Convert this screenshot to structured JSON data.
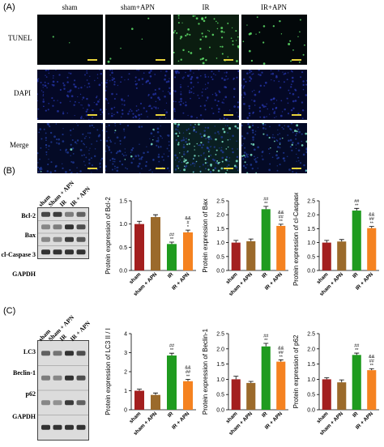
{
  "panels": {
    "a": "(A)",
    "b": "(B)",
    "c": "(C)"
  },
  "microscopy": {
    "columns": [
      "sham",
      "sham+APN",
      "IR",
      "IR+APN"
    ],
    "rows": [
      "TUNEL",
      "DAPI",
      "Merge"
    ]
  },
  "blot_b": {
    "lanes": [
      "sham",
      "Sham + APN",
      "IR",
      "IR + APN"
    ],
    "proteins": [
      "Bcl-2",
      "Bax",
      "cl-Caspase 3",
      "GAPDH"
    ]
  },
  "blot_c": {
    "lanes": [
      "sham",
      "Sham + APN",
      "IR",
      "IR + APN"
    ],
    "proteins": [
      "LC3",
      "Beclin-1",
      "p62",
      "GAPDH"
    ]
  },
  "colors": {
    "sham": "#a31f1f",
    "sham_apn": "#9b6a2b",
    "ir": "#1f9b1f",
    "ir_apn": "#f58220"
  },
  "chart_data": [
    {
      "type": "bar",
      "categories": [
        "sham",
        "sham + APN",
        "IR",
        "IR + APN"
      ],
      "values": [
        1.0,
        1.15,
        0.57,
        0.82
      ],
      "errors": [
        0.06,
        0.05,
        0.04,
        0.05
      ],
      "annotations": [
        "",
        "",
        "##\n**",
        "&&\n#\n*"
      ],
      "ylabel": "Protein expression of  Bcl-2",
      "ylim": [
        0,
        1.5
      ],
      "ticks": [
        "0.0",
        "0.5",
        "1.0",
        "1.5"
      ],
      "tick_values": [
        0,
        0.5,
        1.0,
        1.5
      ]
    },
    {
      "type": "bar",
      "categories": [
        "sham",
        "sham + APN",
        "IR",
        "IR + APN"
      ],
      "values": [
        1.0,
        1.05,
        2.2,
        1.6
      ],
      "errors": [
        0.08,
        0.08,
        0.1,
        0.06
      ],
      "annotations": [
        "",
        "",
        "##\n**",
        "&&\n##\n**"
      ],
      "ylabel": "Protein expression of  Bax",
      "ylim": [
        0,
        2.5
      ],
      "ticks": [
        "0.0",
        "0.5",
        "1.0",
        "1.5",
        "2.0",
        "2.5"
      ],
      "tick_values": [
        0,
        0.5,
        1.0,
        1.5,
        2.0,
        2.5
      ]
    },
    {
      "type": "bar",
      "categories": [
        "sham",
        "sham + APN",
        "IR",
        "IR + APN"
      ],
      "values": [
        1.0,
        1.04,
        2.15,
        1.52
      ],
      "errors": [
        0.08,
        0.07,
        0.08,
        0.06
      ],
      "annotations": [
        "",
        "",
        "##\n**",
        "&&\n##\n**"
      ],
      "ylabel": "Protein expression of  cl-Caspase 3",
      "ylim": [
        0,
        2.5
      ],
      "ticks": [
        "0.0",
        "0.5",
        "1.0",
        "1.5",
        "2.0",
        "2.5"
      ],
      "tick_values": [
        0,
        0.5,
        1.0,
        1.5,
        2.0,
        2.5
      ]
    },
    {
      "type": "bar",
      "categories": [
        "sham",
        "sham + APN",
        "IR",
        "IR + APN"
      ],
      "values": [
        1.0,
        0.78,
        2.85,
        1.5
      ],
      "errors": [
        0.08,
        0.1,
        0.12,
        0.1
      ],
      "annotations": [
        "",
        "",
        "##\n**",
        "&&\n##\n**"
      ],
      "ylabel": "Protein expression of  LC3 II / I",
      "ylim": [
        0,
        4
      ],
      "ticks": [
        "0",
        "1",
        "2",
        "3",
        "4"
      ],
      "tick_values": [
        0,
        1,
        2,
        3,
        4
      ]
    },
    {
      "type": "bar",
      "categories": [
        "sham",
        "sham + APN",
        "IR",
        "IR + APN"
      ],
      "values": [
        1.0,
        0.88,
        2.08,
        1.58
      ],
      "errors": [
        0.1,
        0.05,
        0.1,
        0.06
      ],
      "annotations": [
        "",
        "",
        "##\n**",
        "&&\n##\n**"
      ],
      "ylabel": "Protein expression of  Beclin-1",
      "ylim": [
        0,
        2.5
      ],
      "ticks": [
        "0.0",
        "0.5",
        "1.0",
        "1.5",
        "2.0",
        "2.5"
      ],
      "tick_values": [
        0,
        0.5,
        1.0,
        1.5,
        2.0,
        2.5
      ]
    },
    {
      "type": "bar",
      "categories": [
        "sham",
        "sham + APN",
        "IR",
        "IR + APN"
      ],
      "values": [
        1.0,
        0.9,
        1.8,
        1.3
      ],
      "errors": [
        0.05,
        0.08,
        0.06,
        0.05
      ],
      "annotations": [
        "",
        "",
        "##\n**",
        "&&\n##\n**"
      ],
      "ylabel": "Protein expression of  p62",
      "ylim": [
        0,
        2.5
      ],
      "ticks": [
        "0.0",
        "0.5",
        "1.0",
        "1.5",
        "2.0",
        "2.5"
      ],
      "tick_values": [
        0,
        0.5,
        1.0,
        1.5,
        2.0,
        2.5
      ]
    }
  ]
}
